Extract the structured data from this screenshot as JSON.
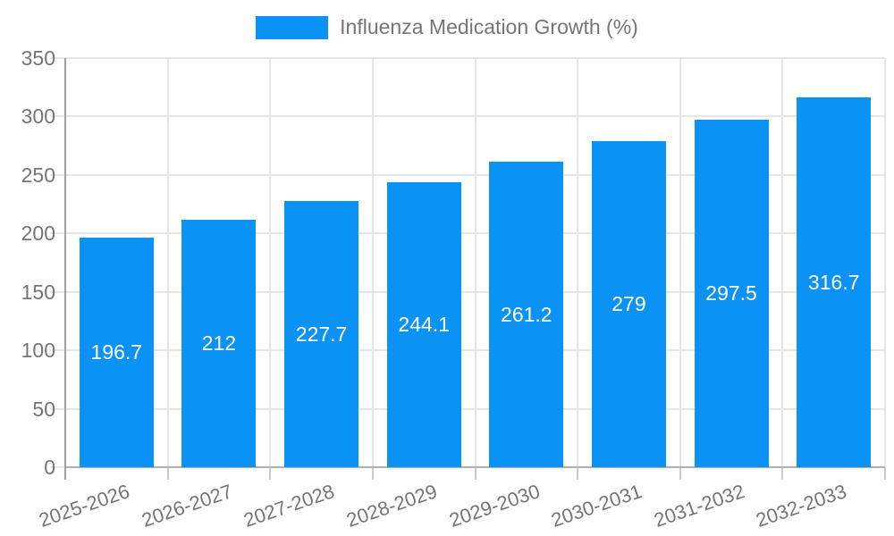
{
  "legend": {
    "label": "Influenza Medication Growth (%)",
    "swatch_color": "#0b92f5"
  },
  "chart_data": {
    "type": "bar",
    "title": "Influenza Medication Growth (%)",
    "xlabel": "",
    "ylabel": "",
    "categories": [
      "2025-2026",
      "2026-2027",
      "2027-2028",
      "2028-2029",
      "2029-2030",
      "2030-2031",
      "2031-2032",
      "2032-2033"
    ],
    "values": [
      196.7,
      212,
      227.7,
      244.1,
      261.2,
      279,
      297.5,
      316.7
    ],
    "value_labels": [
      "196.7",
      "212",
      "227.7",
      "244.1",
      "261.2",
      "279",
      "297.5",
      "316.7"
    ],
    "ylim": [
      0,
      350
    ],
    "ytick_step": 50,
    "ytick_labels": [
      "0",
      "50",
      "100",
      "150",
      "200",
      "250",
      "300",
      "350"
    ],
    "grid": true,
    "legend_position": "top",
    "bar_color": "#0b92f5",
    "value_label_color": "#ffffff",
    "axis_text_color": "#757575",
    "gridline_color": "#e6e6e6"
  }
}
